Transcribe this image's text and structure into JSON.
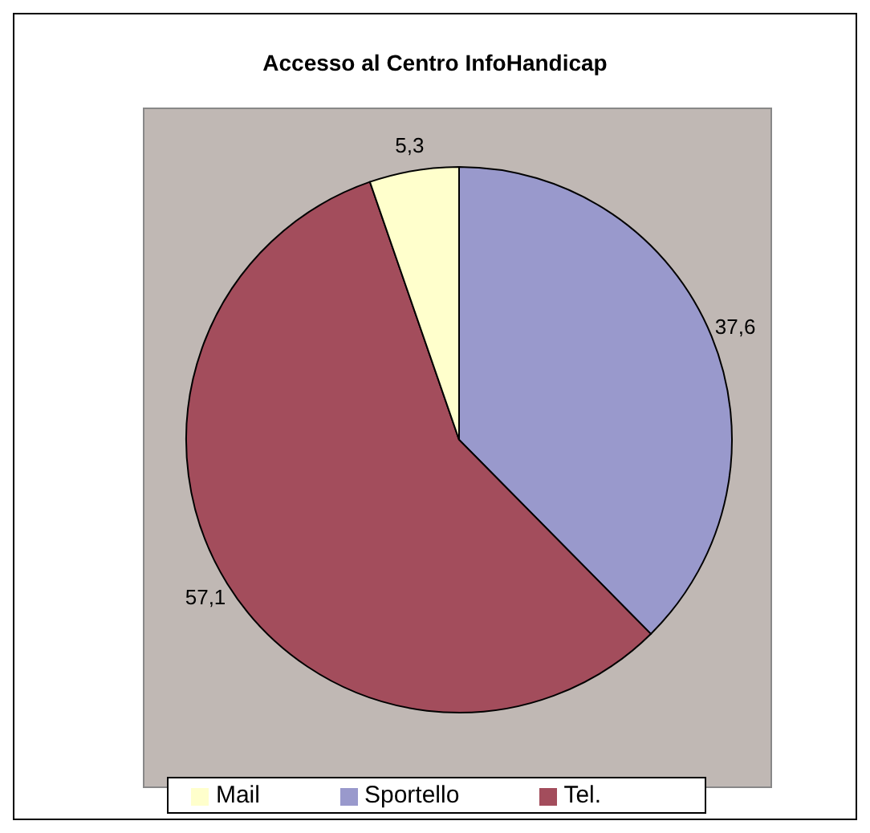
{
  "chart_data": {
    "type": "pie",
    "title": "Accesso al Centro InfoHandicap",
    "categories": [
      "Sportello",
      "Tel.",
      "Mail"
    ],
    "values": [
      37.6,
      57.1,
      5.3
    ],
    "colors": [
      "#9999cc",
      "#a34d5c",
      "#ffffcc"
    ],
    "value_labels": [
      "37,6",
      "57,1",
      "5,3"
    ],
    "legend": "bottom"
  }
}
